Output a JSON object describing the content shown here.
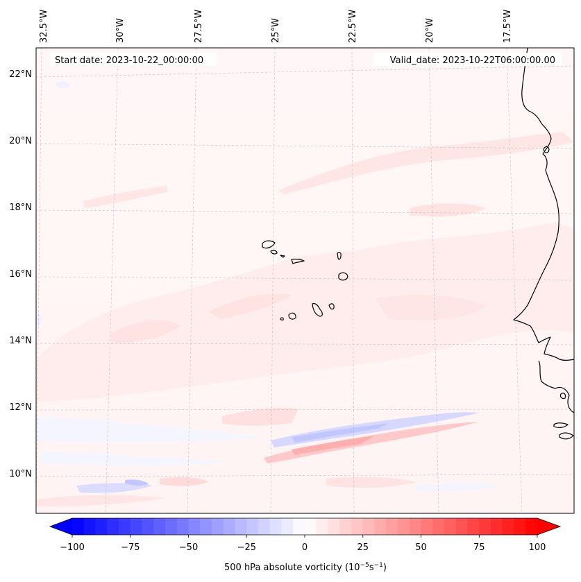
{
  "map": {
    "start_label": "Start date: 2023-10-22_00:00:00",
    "valid_label": "Valid_date: 2023-10-22T06:00:00.00",
    "lon_labels": [
      "32.5°W",
      "30°W",
      "27.5°W",
      "25°W",
      "22.5°W",
      "20°W",
      "17.5°W"
    ],
    "lat_labels": [
      "22°N",
      "20°N",
      "18°N",
      "16°N",
      "14°N",
      "12°N",
      "10°N"
    ],
    "coastline_color": "#000000",
    "gridline_color": "#bbbbbb"
  },
  "colorbar": {
    "label_main": "500 hPa absolute vorticity (10",
    "label_exp1": "−5",
    "label_mid": "s",
    "label_exp2": "−1",
    "label_close": ")",
    "ticks": [
      "−100",
      "−75",
      "−50",
      "−25",
      "0",
      "25",
      "50",
      "75",
      "100"
    ],
    "tick_values": [
      -100,
      -75,
      -50,
      -25,
      0,
      25,
      50,
      75,
      100
    ],
    "vmin": -100,
    "vmax": 100,
    "extend": "both",
    "colormap": "bwr",
    "low_color": "#0000ff",
    "mid_color": "#ffffff",
    "high_color": "#ff0000"
  }
}
